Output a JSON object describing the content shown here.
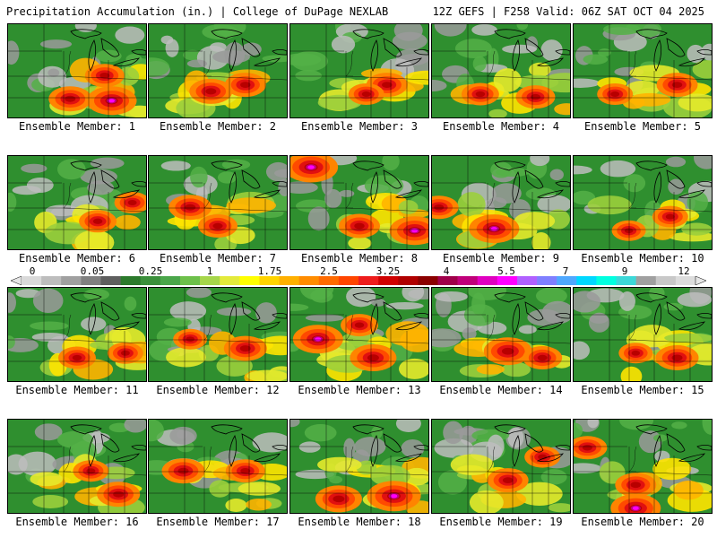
{
  "header": {
    "left": "Precipitation Accumulation (in.) | College of DuPage NEXLAB",
    "right": "12Z GEFS | F258 Valid: 06Z SAT OCT 04 2025"
  },
  "colorbar": {
    "labels": [
      "0",
      "0.05",
      "0.25",
      "1",
      "1.75",
      "2.5",
      "3.25",
      "4",
      "5.5",
      "7",
      "9",
      "12"
    ],
    "colors": [
      "#d9d9d9",
      "#bdbdbd",
      "#a0a0a0",
      "#808080",
      "#5f5f5f",
      "#2c7a2c",
      "#3b8f3b",
      "#4aa64a",
      "#6dc04a",
      "#a6d64a",
      "#e3ea3b",
      "#ffff00",
      "#ffd400",
      "#ffb000",
      "#ff8c00",
      "#ff6a00",
      "#ff4500",
      "#ee1c1c",
      "#d00000",
      "#b00000",
      "#8b0000",
      "#a0004a",
      "#c0007a",
      "#e000c0",
      "#ff00ff",
      "#b060ff",
      "#7f7fff",
      "#4fa8ff",
      "#00d8ff",
      "#00ffe0",
      "#3cd8d8",
      "#a0a0a0",
      "#c8c8c8",
      "#dcdcdc"
    ]
  },
  "members": [
    {
      "label": "Ensemble Member: 1"
    },
    {
      "label": "Ensemble Member: 2"
    },
    {
      "label": "Ensemble Member: 3"
    },
    {
      "label": "Ensemble Member: 4"
    },
    {
      "label": "Ensemble Member: 5"
    },
    {
      "label": "Ensemble Member: 6"
    },
    {
      "label": "Ensemble Member: 7"
    },
    {
      "label": "Ensemble Member: 8"
    },
    {
      "label": "Ensemble Member: 9"
    },
    {
      "label": "Ensemble Member: 10"
    },
    {
      "label": "Ensemble Member: 11"
    },
    {
      "label": "Ensemble Member: 12"
    },
    {
      "label": "Ensemble Member: 13"
    },
    {
      "label": "Ensemble Member: 14"
    },
    {
      "label": "Ensemble Member: 15"
    },
    {
      "label": "Ensemble Member: 16"
    },
    {
      "label": "Ensemble Member: 17"
    },
    {
      "label": "Ensemble Member: 18"
    },
    {
      "label": "Ensemble Member: 19"
    },
    {
      "label": "Ensemble Member: 20"
    }
  ]
}
